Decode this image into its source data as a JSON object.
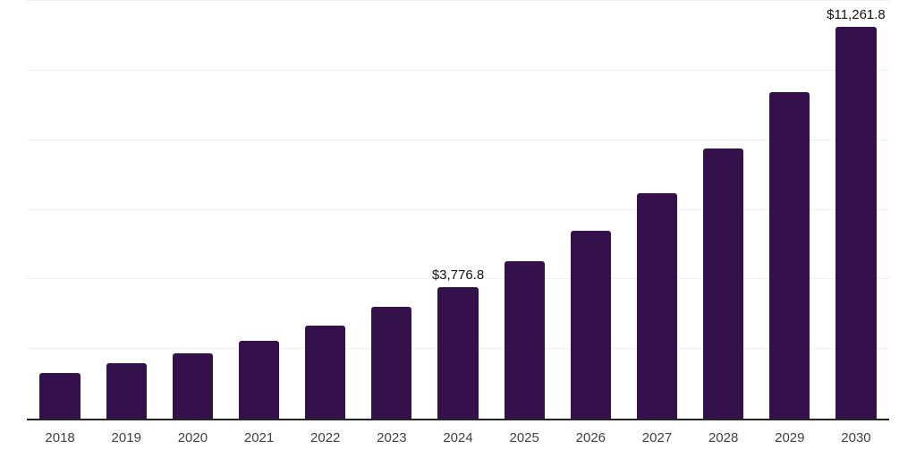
{
  "chart": {
    "background_color": "#ffffff",
    "bar_color": "#34114A",
    "axis_line_color": "#262626",
    "gridline_color": "#f0f0f0",
    "tick_label_color": "#404040",
    "data_label_color": "#121212"
  },
  "chart_data": {
    "type": "bar",
    "title": "",
    "xlabel": "",
    "ylabel": "",
    "categories": [
      "2018",
      "2019",
      "2020",
      "2021",
      "2022",
      "2023",
      "2024",
      "2025",
      "2026",
      "2027",
      "2028",
      "2029",
      "2030"
    ],
    "values": [
      1320,
      1585,
      1875,
      2230,
      2670,
      3210,
      3776.8,
      4535,
      5390,
      6470,
      7760,
      9370,
      11261.8
    ],
    "data_labels": [
      null,
      null,
      null,
      null,
      null,
      null,
      "$3,776.8",
      null,
      null,
      null,
      null,
      null,
      "$11,261.8"
    ],
    "ylim": [
      0,
      12000
    ],
    "gridline_step": 2000,
    "grid": true,
    "legend": false,
    "y_axis_labels_shown": false
  }
}
